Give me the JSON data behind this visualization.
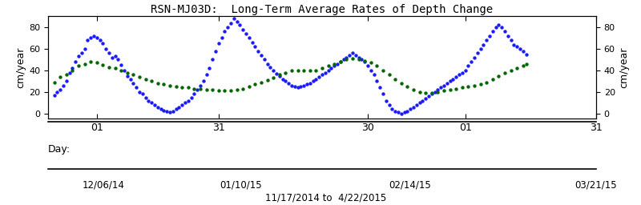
{
  "title": "RSN-MJ03D:  Long-Term Average Rates of Depth Change",
  "ylabel_left": "cm/year",
  "ylabel_right": "cm/year",
  "date_range": "11/17/2014 to  4/22/2015",
  "ylim": [
    -5,
    90
  ],
  "yticks": [
    0,
    20,
    40,
    60,
    80
  ],
  "background_color": "#ffffff",
  "blue_color": "#1a1aff",
  "green_color": "#006600",
  "day_tick_pos": [
    14,
    54,
    103,
    135,
    178
  ],
  "day_tick_lab": [
    "01",
    "31",
    "30",
    "01",
    "31"
  ],
  "month_labels": [
    "12/06/14",
    "01/10/15",
    "02/14/15",
    "03/21/15"
  ],
  "month_data_x": [
    14,
    54,
    103,
    157
  ],
  "xlim": [
    -2,
    157
  ],
  "blue_data": [
    [
      0,
      17
    ],
    [
      1,
      20
    ],
    [
      2,
      22
    ],
    [
      3,
      26
    ],
    [
      4,
      30
    ],
    [
      5,
      38
    ],
    [
      6,
      42
    ],
    [
      7,
      48
    ],
    [
      8,
      53
    ],
    [
      9,
      56
    ],
    [
      10,
      60
    ],
    [
      11,
      68
    ],
    [
      12,
      70
    ],
    [
      13,
      72
    ],
    [
      14,
      70
    ],
    [
      15,
      68
    ],
    [
      16,
      65
    ],
    [
      17,
      60
    ],
    [
      18,
      56
    ],
    [
      19,
      52
    ],
    [
      20,
      53
    ],
    [
      21,
      50
    ],
    [
      22,
      45
    ],
    [
      23,
      40
    ],
    [
      24,
      35
    ],
    [
      25,
      32
    ],
    [
      26,
      28
    ],
    [
      27,
      24
    ],
    [
      28,
      20
    ],
    [
      29,
      18
    ],
    [
      30,
      15
    ],
    [
      31,
      12
    ],
    [
      32,
      10
    ],
    [
      33,
      8
    ],
    [
      34,
      6
    ],
    [
      35,
      4
    ],
    [
      36,
      3
    ],
    [
      37,
      2
    ],
    [
      38,
      1
    ],
    [
      39,
      2
    ],
    [
      40,
      4
    ],
    [
      41,
      6
    ],
    [
      42,
      8
    ],
    [
      43,
      10
    ],
    [
      44,
      12
    ],
    [
      45,
      15
    ],
    [
      46,
      18
    ],
    [
      47,
      22
    ],
    [
      48,
      26
    ],
    [
      49,
      30
    ],
    [
      50,
      36
    ],
    [
      51,
      42
    ],
    [
      52,
      50
    ],
    [
      53,
      58
    ],
    [
      54,
      65
    ],
    [
      55,
      70
    ],
    [
      56,
      76
    ],
    [
      57,
      80
    ],
    [
      58,
      84
    ],
    [
      59,
      88
    ],
    [
      60,
      85
    ],
    [
      61,
      82
    ],
    [
      62,
      78
    ],
    [
      63,
      74
    ],
    [
      64,
      70
    ],
    [
      65,
      66
    ],
    [
      66,
      62
    ],
    [
      67,
      58
    ],
    [
      68,
      54
    ],
    [
      69,
      50
    ],
    [
      70,
      46
    ],
    [
      71,
      43
    ],
    [
      72,
      40
    ],
    [
      73,
      37
    ],
    [
      74,
      35
    ],
    [
      75,
      32
    ],
    [
      76,
      30
    ],
    [
      77,
      28
    ],
    [
      78,
      26
    ],
    [
      79,
      25
    ],
    [
      80,
      24
    ],
    [
      81,
      25
    ],
    [
      82,
      26
    ],
    [
      83,
      27
    ],
    [
      84,
      28
    ],
    [
      85,
      30
    ],
    [
      86,
      32
    ],
    [
      87,
      34
    ],
    [
      88,
      36
    ],
    [
      89,
      38
    ],
    [
      90,
      40
    ],
    [
      91,
      42
    ],
    [
      92,
      44
    ],
    [
      93,
      46
    ],
    [
      94,
      48
    ],
    [
      95,
      50
    ],
    [
      96,
      52
    ],
    [
      97,
      54
    ],
    [
      98,
      56
    ],
    [
      99,
      54
    ],
    [
      100,
      52
    ],
    [
      101,
      50
    ],
    [
      102,
      48
    ],
    [
      103,
      44
    ],
    [
      104,
      40
    ],
    [
      105,
      36
    ],
    [
      106,
      30
    ],
    [
      107,
      24
    ],
    [
      108,
      18
    ],
    [
      109,
      12
    ],
    [
      110,
      8
    ],
    [
      111,
      4
    ],
    [
      112,
      2
    ],
    [
      113,
      1
    ],
    [
      114,
      0
    ],
    [
      115,
      1
    ],
    [
      116,
      2
    ],
    [
      117,
      4
    ],
    [
      118,
      6
    ],
    [
      119,
      8
    ],
    [
      120,
      10
    ],
    [
      121,
      12
    ],
    [
      122,
      14
    ],
    [
      123,
      16
    ],
    [
      124,
      18
    ],
    [
      125,
      20
    ],
    [
      126,
      22
    ],
    [
      127,
      24
    ],
    [
      128,
      26
    ],
    [
      129,
      28
    ],
    [
      130,
      30
    ],
    [
      131,
      32
    ],
    [
      132,
      34
    ],
    [
      133,
      36
    ],
    [
      134,
      38
    ],
    [
      135,
      40
    ],
    [
      136,
      44
    ],
    [
      137,
      48
    ],
    [
      138,
      52
    ],
    [
      139,
      56
    ],
    [
      140,
      60
    ],
    [
      141,
      64
    ],
    [
      142,
      68
    ],
    [
      143,
      72
    ],
    [
      144,
      76
    ],
    [
      145,
      80
    ],
    [
      146,
      82
    ],
    [
      147,
      80
    ],
    [
      148,
      76
    ],
    [
      149,
      72
    ],
    [
      150,
      68
    ],
    [
      151,
      64
    ],
    [
      152,
      62
    ],
    [
      153,
      60
    ],
    [
      154,
      58
    ],
    [
      155,
      55
    ]
  ],
  "green_data": [
    [
      0,
      29
    ],
    [
      2,
      34
    ],
    [
      4,
      36
    ],
    [
      6,
      40
    ],
    [
      8,
      44
    ],
    [
      10,
      46
    ],
    [
      12,
      48
    ],
    [
      14,
      47
    ],
    [
      16,
      45
    ],
    [
      18,
      43
    ],
    [
      20,
      42
    ],
    [
      22,
      40
    ],
    [
      24,
      38
    ],
    [
      26,
      36
    ],
    [
      28,
      34
    ],
    [
      30,
      32
    ],
    [
      32,
      30
    ],
    [
      34,
      28
    ],
    [
      36,
      27
    ],
    [
      38,
      26
    ],
    [
      40,
      25
    ],
    [
      42,
      24
    ],
    [
      44,
      24
    ],
    [
      46,
      23
    ],
    [
      48,
      23
    ],
    [
      50,
      22
    ],
    [
      52,
      22
    ],
    [
      54,
      21
    ],
    [
      56,
      21
    ],
    [
      58,
      21
    ],
    [
      60,
      22
    ],
    [
      62,
      23
    ],
    [
      64,
      25
    ],
    [
      66,
      27
    ],
    [
      68,
      29
    ],
    [
      70,
      31
    ],
    [
      72,
      33
    ],
    [
      74,
      36
    ],
    [
      76,
      38
    ],
    [
      78,
      40
    ],
    [
      80,
      40
    ],
    [
      82,
      40
    ],
    [
      84,
      40
    ],
    [
      86,
      40
    ],
    [
      88,
      42
    ],
    [
      90,
      44
    ],
    [
      92,
      46
    ],
    [
      94,
      48
    ],
    [
      96,
      50
    ],
    [
      98,
      51
    ],
    [
      100,
      50
    ],
    [
      102,
      49
    ],
    [
      104,
      47
    ],
    [
      106,
      44
    ],
    [
      108,
      40
    ],
    [
      110,
      36
    ],
    [
      112,
      32
    ],
    [
      114,
      28
    ],
    [
      116,
      25
    ],
    [
      118,
      22
    ],
    [
      120,
      20
    ],
    [
      122,
      19
    ],
    [
      124,
      19
    ],
    [
      126,
      20
    ],
    [
      128,
      21
    ],
    [
      130,
      22
    ],
    [
      132,
      23
    ],
    [
      134,
      24
    ],
    [
      136,
      25
    ],
    [
      138,
      26
    ],
    [
      140,
      27
    ],
    [
      142,
      29
    ],
    [
      144,
      32
    ],
    [
      146,
      35
    ],
    [
      148,
      38
    ],
    [
      150,
      40
    ],
    [
      152,
      42
    ],
    [
      154,
      44
    ],
    [
      155,
      46
    ]
  ]
}
